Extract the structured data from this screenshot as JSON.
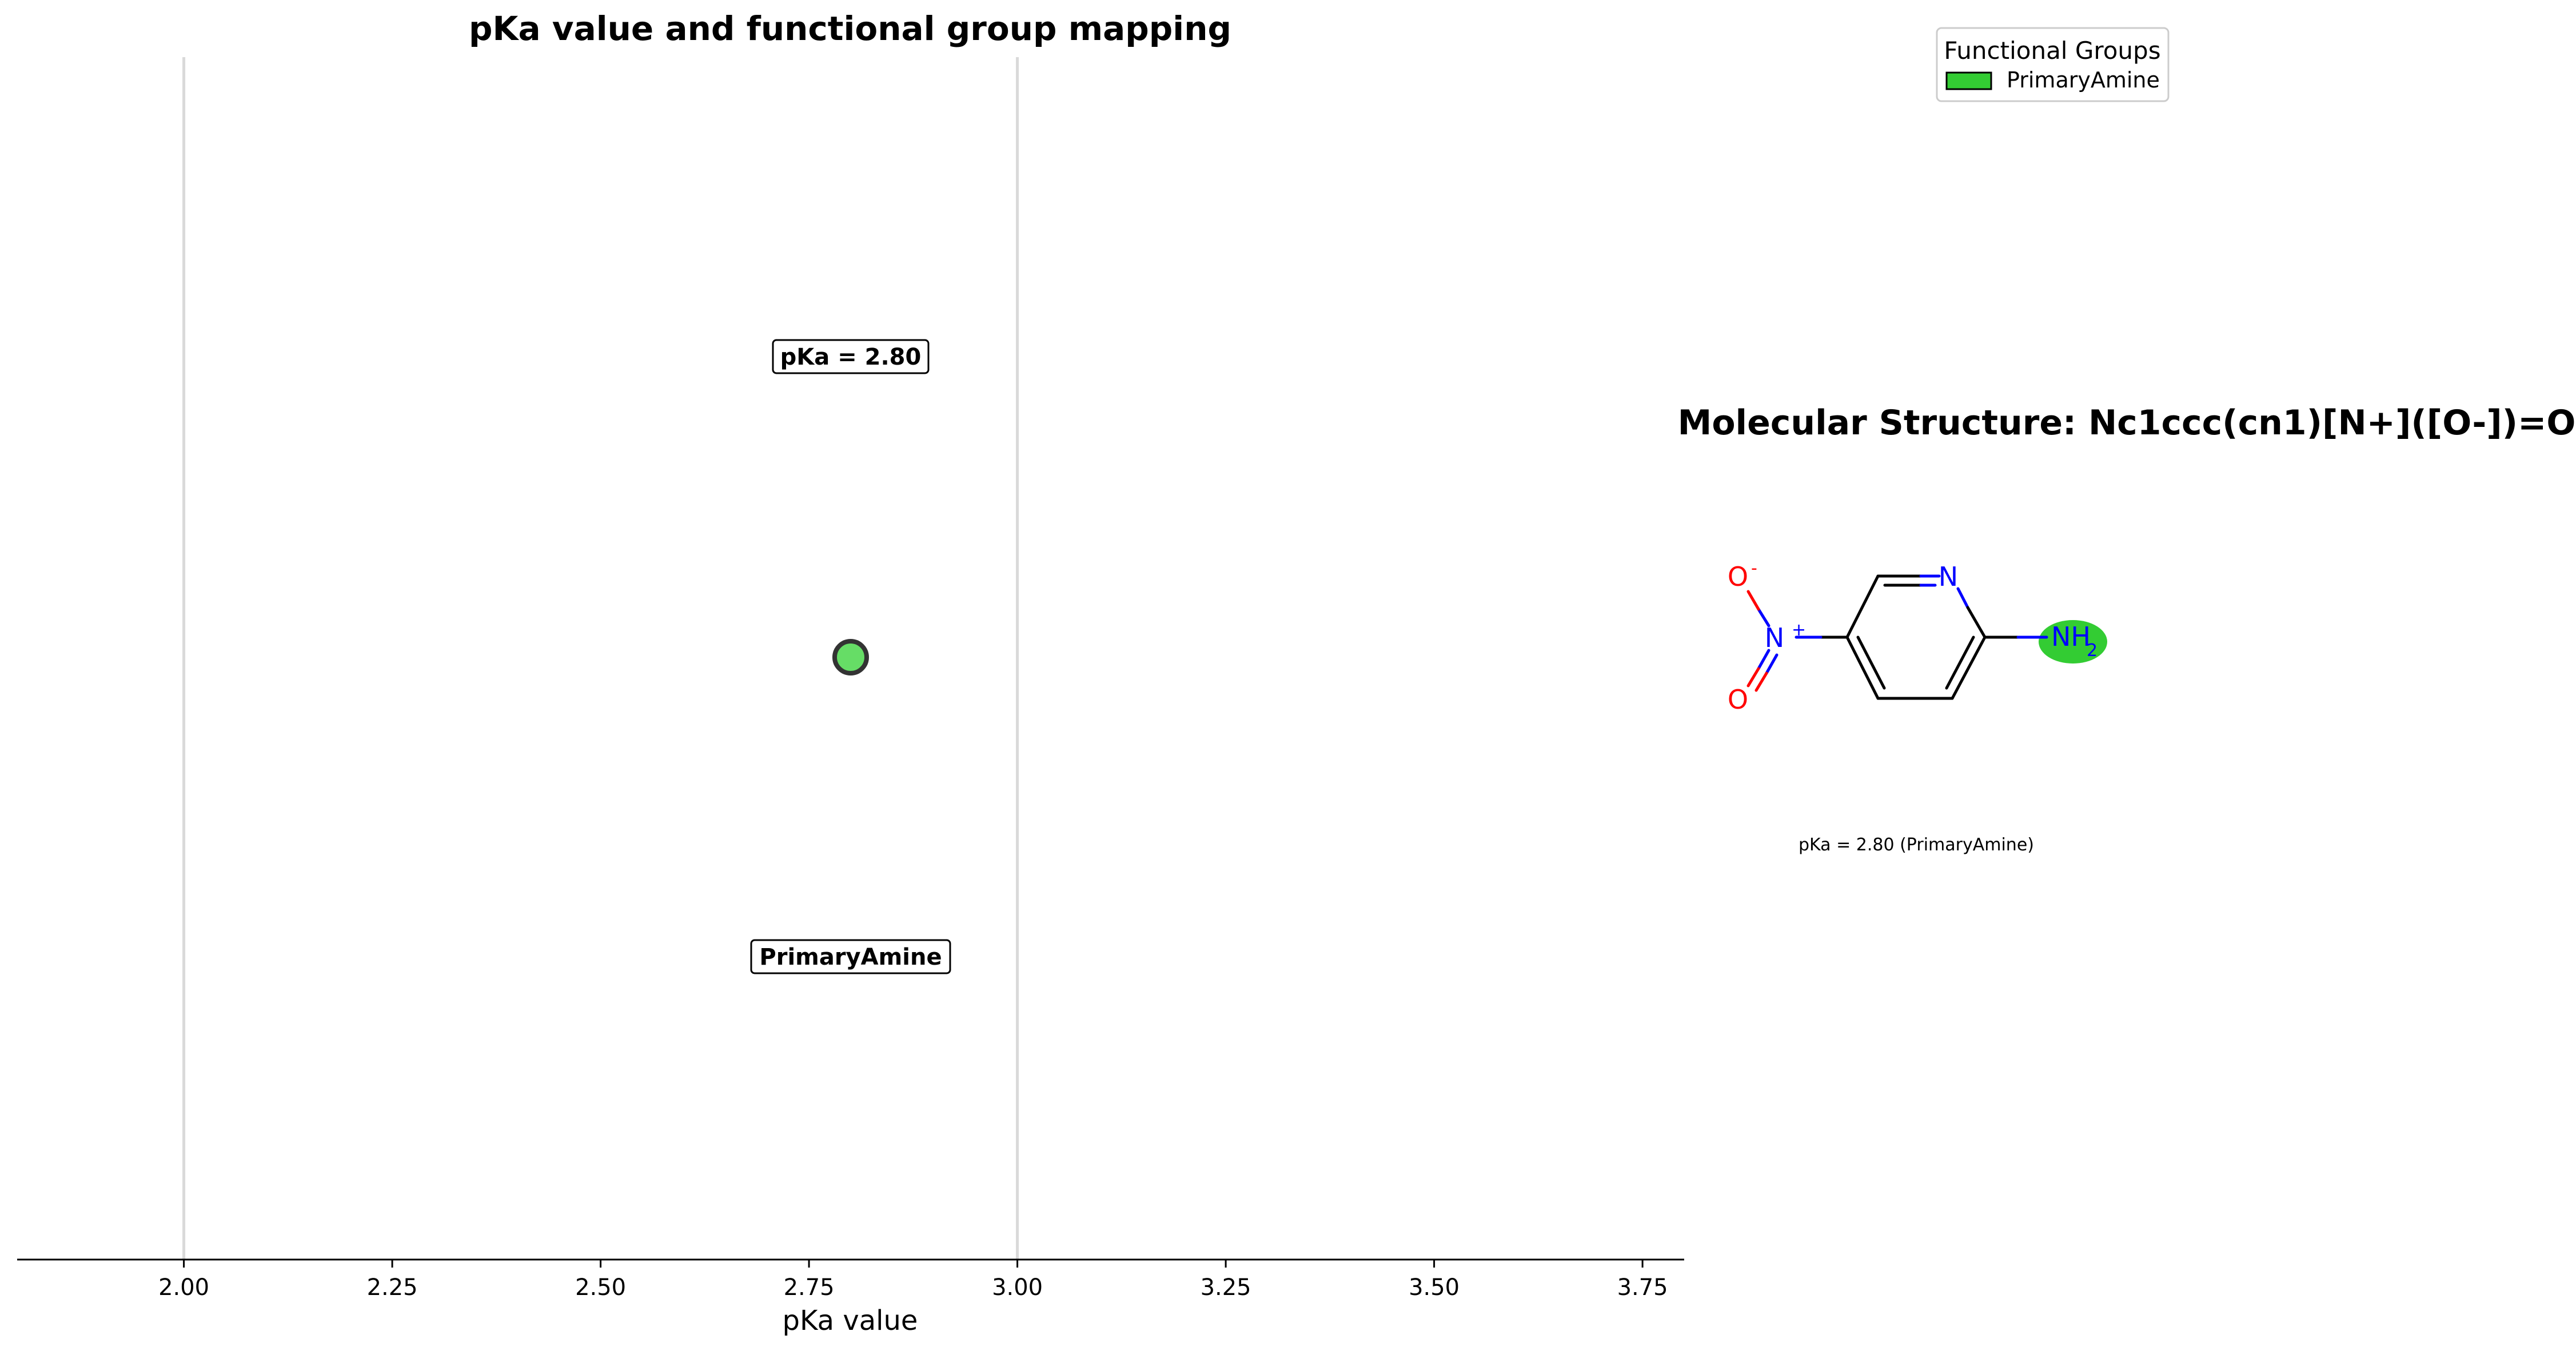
{
  "chart_data": [
    {
      "type": "scatter",
      "title": "pKa value and functional group mapping",
      "xlabel": "pKa value",
      "ylabel": "",
      "xlim": [
        1.8,
        3.8
      ],
      "xticks": [
        2.0,
        2.25,
        2.5,
        2.75,
        3.0,
        3.25,
        3.5,
        3.75
      ],
      "xtick_labels": [
        "2.00",
        "2.25",
        "2.50",
        "2.75",
        "3.00",
        "3.25",
        "3.50",
        "3.75"
      ],
      "reference_lines_x": [
        2.0,
        3.0
      ],
      "grid": false,
      "points": [
        {
          "x": 2.8,
          "group": "PrimaryAmine",
          "color": "#66dd66",
          "value_label": "pKa = 2.80",
          "group_label": "PrimaryAmine"
        }
      ]
    }
  ],
  "legend": {
    "title": "Functional Groups",
    "placement": "top-right",
    "items": [
      {
        "label": "PrimaryAmine",
        "color": "#33cc33"
      }
    ]
  },
  "structure": {
    "title": "Molecular Structure: Nc1ccc(cn1)[N+]([O-])=O",
    "caption": "pKa = 2.80 (PrimaryAmine)",
    "highlight_color": "#33cc33",
    "bond_color": "#000000",
    "nitrogen_color": "#0000ff",
    "oxygen_color": "#ff0000",
    "atoms": {
      "ring_n": "N",
      "nitro_n": "N",
      "nitro_n_charge": "+",
      "oxide_o": "O",
      "oxide_charge": "-",
      "double_o": "O",
      "amine_nh": "NH",
      "amine_sub": "2"
    }
  }
}
